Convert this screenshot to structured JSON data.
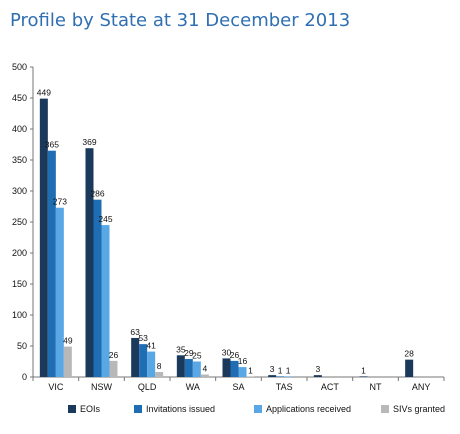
{
  "chart_data": {
    "type": "bar",
    "title": "Profile by State at 31 December 2013",
    "xlabel": "",
    "ylabel": "",
    "ylim": [
      0,
      500
    ],
    "yticks": [
      0,
      50,
      100,
      150,
      200,
      250,
      300,
      350,
      400,
      450,
      500
    ],
    "categories": [
      "VIC",
      "NSW",
      "QLD",
      "WA",
      "SA",
      "TAS",
      "ACT",
      "NT",
      "ANY"
    ],
    "series": [
      {
        "name": "EOIs",
        "color": "#1b3a5b",
        "values": [
          449,
          369,
          63,
          35,
          30,
          3,
          3,
          1,
          28
        ]
      },
      {
        "name": "Invitations  issued",
        "color": "#1f6db3",
        "values": [
          365,
          286,
          53,
          29,
          26,
          1,
          0,
          0,
          0
        ]
      },
      {
        "name": "Applications received",
        "color": "#5aa7e6",
        "values": [
          273,
          245,
          41,
          25,
          16,
          1,
          0,
          0,
          0
        ]
      },
      {
        "name": "SIVs granted",
        "color": "#b8b8b8",
        "values": [
          49,
          26,
          8,
          4,
          1,
          0,
          0,
          0,
          0
        ]
      }
    ],
    "data_labels": [
      [
        "449",
        "365",
        "273",
        "49"
      ],
      [
        "369",
        "286",
        "245",
        "26"
      ],
      [
        "63",
        "53",
        "41",
        "8"
      ],
      [
        "35",
        "29",
        "25",
        "4"
      ],
      [
        "30",
        "26",
        "16",
        "1"
      ],
      [
        "3",
        "1",
        "1",
        ""
      ],
      [
        "3",
        "",
        "",
        ""
      ],
      [
        "1",
        "",
        "",
        ""
      ],
      [
        "28",
        "",
        "",
        ""
      ]
    ],
    "legend_position": "bottom",
    "grid": false
  }
}
